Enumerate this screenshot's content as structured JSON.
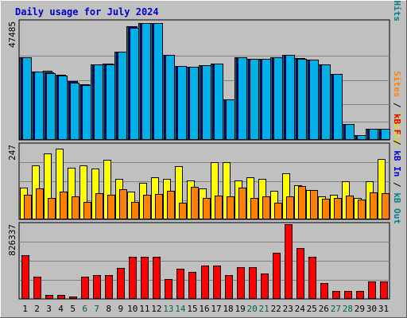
{
  "chart_data": {
    "type": "bar",
    "title": "Daily usage for July 2024",
    "categories": [
      "1",
      "2",
      "3",
      "4",
      "5",
      "6",
      "7",
      "8",
      "9",
      "10",
      "11",
      "12",
      "13",
      "14",
      "15",
      "16",
      "17",
      "18",
      "19",
      "20",
      "21",
      "22",
      "23",
      "24",
      "25",
      "26",
      "27",
      "28",
      "29",
      "30",
      "31"
    ],
    "weekend_days": [
      "6",
      "7",
      "13",
      "14",
      "20",
      "21",
      "27",
      "28"
    ],
    "colors": {
      "background": "#c0c0c0",
      "title": "#0000cc",
      "day_label": "#000000",
      "weekend_label": "#006633",
      "hits": "#008080",
      "files": "#0000cc",
      "pages": "#00b0e8",
      "visits": "#e0e000",
      "sites": "#ff8000",
      "kb_out": "#008080",
      "kb_in": "#0000cc",
      "kb_f": "#e00000"
    },
    "panels": [
      {
        "id": "hits-panel",
        "max_label": "47485",
        "ymax": 47485,
        "right_label": [
          {
            "text": "Pages",
            "color": "#00b0e8"
          },
          {
            "text": " / ",
            "color": "#000000"
          },
          {
            "text": "Files",
            "color": "#0000cc"
          },
          {
            "text": " / ",
            "color": "#000000"
          },
          {
            "text": "Hits",
            "color": "#008080"
          }
        ],
        "series": [
          {
            "name": "Hits",
            "color": "#008080",
            "values": [
              33000,
              27500,
              27600,
              26000,
              23500,
              22300,
              30400,
              30500,
              35500,
              45500,
              47000,
              47000,
              34000,
              29600,
              29400,
              29800,
              30600,
              16300,
              33000,
              32600,
              32600,
              33300,
              34200,
              32900,
              32100,
              30300,
              26500,
              6500,
              1900,
              4500,
              4500
            ]
          },
          {
            "name": "Files",
            "color": "#0000cc",
            "values": [
              33000,
              27500,
              27100,
              26000,
              23500,
              22300,
              30400,
              30500,
              35500,
              45500,
              47000,
              47000,
              34000,
              29600,
              29400,
              29800,
              30600,
              16300,
              33000,
              32600,
              32600,
              33300,
              34200,
              32900,
              32100,
              30300,
              26500,
              6500,
              1900,
              4500,
              4500
            ]
          },
          {
            "name": "Pages",
            "color": "#00b0e8",
            "values": [
              33000,
              27500,
              26800,
              25800,
              23000,
              22000,
              30400,
              30200,
              35500,
              44800,
              47000,
              47000,
              34000,
              29600,
              29400,
              29800,
              30600,
              16300,
              33000,
              32600,
              32600,
              33300,
              34200,
              32600,
              32100,
              30300,
              26500,
              6500,
              1900,
              4500,
              4500
            ]
          }
        ]
      },
      {
        "id": "visits-panel",
        "max_label": "247",
        "ymax": 247,
        "right_label": [
          {
            "text": "Sites",
            "color": "#ff8000"
          },
          {
            "text": " / ",
            "color": "#000000"
          },
          {
            "text": "Visits",
            "color": "#e0e000"
          }
        ],
        "series": [
          {
            "name": "Visits",
            "color": "#ffff00",
            "values": [
              105,
              178,
              218,
              235,
              170,
              178,
              168,
              198,
              135,
              92,
              122,
              140,
              135,
              176,
              128,
              103,
              188,
              190,
              128,
              140,
              133,
              94,
              153,
              113,
              98,
              76,
              81,
              125,
              70,
              127,
              200
            ]
          },
          {
            "name": "Sites",
            "color": "#ff8000",
            "values": [
              81,
              103,
              72,
              93,
              76,
              58,
              87,
              82,
              100,
              58,
              81,
              85,
              94,
              55,
              109,
              72,
              79,
              76,
              106,
              70,
              75,
              56,
              75,
              111,
              98,
              68,
              70,
              80,
              67,
              89,
              87
            ]
          }
        ]
      },
      {
        "id": "kb-panel",
        "max_label": "826337",
        "ymax": 826337,
        "right_label": [
          {
            "text": "kB F",
            "color": "#e00000"
          },
          {
            "text": " / ",
            "color": "#000000"
          },
          {
            "text": "kB In",
            "color": "#0000cc"
          },
          {
            "text": " / ",
            "color": "#000000"
          },
          {
            "text": "kB Out",
            "color": "#008080"
          }
        ],
        "series": [
          {
            "name": "kB F",
            "color": "#ff0000",
            "values": [
              480000,
              250000,
              45000,
              40000,
              30000,
              250000,
              260000,
              260000,
              340000,
              470000,
              470000,
              470000,
              220000,
              330000,
              300000,
              370000,
              370000,
              260000,
              350000,
              350000,
              280000,
              510000,
              826337,
              560000,
              470000,
              180000,
              85000,
              85000,
              90000,
              190000,
              190000
            ]
          }
        ]
      }
    ]
  }
}
